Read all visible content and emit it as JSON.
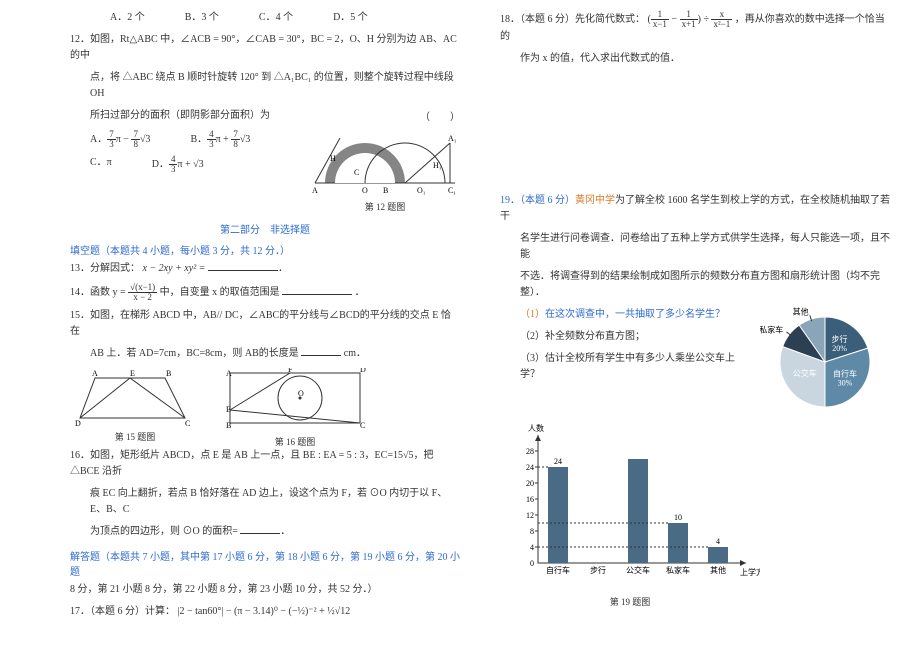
{
  "q11_choices": {
    "a": "A．2 个",
    "b": "B．3 个",
    "c": "C．4 个",
    "d": "D．5 个"
  },
  "q12": {
    "intro": "12．如图，Rt△ABC 中，∠ACB = 90°，∠CAB = 30°，BC = 2，O、H 分别为边 AB、AC 的中",
    "intro2": "点，将 △ABC 绕点 B 顺时针旋转 120° 到 △A₁BC₁ 的位置，则整个旋转过程中线段 OH",
    "intro3": "所扫过部分的面积（即阴影部分面积）为",
    "choice_a_label": "A．",
    "choice_b_label": "B．",
    "choice_c": "C．π",
    "choice_d_label": "D．",
    "figcap": "第 12 题图",
    "paren": "（　　）"
  },
  "section2_title": "第二部分　非选择题",
  "fill_heading": "填空题（本题共 4 小题，每小题 3 分，共 12 分．）",
  "q13": {
    "text": "13．分解因式：",
    "expr": "x − 2xy + xy² = "
  },
  "q14": {
    "text": "14．函数 y = ",
    "tail": " 中，自变量 x 的取值范围是",
    "period": "．"
  },
  "q15": {
    "line1": "15．如图，在梯形 ABCD 中，AB// DC，∠ABC的平分线与∠BCD的平分线的交点 E 恰在",
    "line2": "AB 上．若 AD=7cm，BC=8cm，则 AB的长度是",
    "unit": "cm．",
    "figcap": "第 15 题图",
    "figcap2": "第 16 题图"
  },
  "q16": {
    "line1": "16．如图，矩形纸片 ABCD，点 E 是 AB 上一点，且 BE : EA = 5 : 3，EC=15√5，把 △BCE 沿折",
    "line2": "痕 EC 向上翻折，若点 B 恰好落在 AD 边上，设这个点为 F，若 ⊙O 内切于以 F、E、B、C",
    "line3": "为顶点的四边形，则 ⊙O 的面积="
  },
  "solve_heading": "解答题（本题共 7 小题，其中第 17 小题 6 分，第 18 小题 6 分，第 19 小题 6 分，第 20 小题",
  "solve_heading2": "8 分，第 21 小题 8 分，第 22 小题 8 分，第 23 小题 10 分，共 52 分．）",
  "q17": {
    "label": "17．（本题 6 分）计算：",
    "expr": "|2 − tan60°| − (π − 3.14)⁰ − (−½)⁻² + ½√12"
  },
  "q18": {
    "line1": "18．（本题 6 分）先化简代数式：",
    "line2": "，再从你喜欢的数中选择一个恰当的",
    "line3": "作为 x 的值，代入求出代数式的值．"
  },
  "q19": {
    "line1": "19．（本题 6 分）",
    "school": "黄冈中学",
    "line1b": "为了解全校 1600 名学生到校上学的方式，在全校随机抽取了若干",
    "line2": "名学生进行问卷调查．问卷给出了五种上学方式供学生选择，每人只能选一项，且不能",
    "line3": "不选．将调查得到的结果绘制成如图所示的频数分布直方图和扇形统计图（均不完整）．",
    "sub1_label": "（1）",
    "sub1": "在这次调查中，一共抽取了多少名学生？",
    "sub2": "（2）补全频数分布直方图；",
    "sub3": "（3）估计全校所有学生中有多少人乘坐公交车上学？",
    "figcap": "第 19 题图"
  },
  "pie": {
    "labels": {
      "walk": "步行\n20%",
      "bike": "自行车\n30%",
      "bus": "公交车",
      "private": "私家车",
      "other": "其他"
    },
    "colors": {
      "walk": "#3b5e7a",
      "bike": "#5e8aa8",
      "bus": "#c9d6e0",
      "private": "#2d3f52",
      "other": "#8aa5b8"
    },
    "angles": {
      "walk_start": -90,
      "walk_end": -18,
      "bike_start": -18,
      "bike_end": 90,
      "bus_start": 90,
      "bus_end": 200,
      "private_start": 200,
      "private_end": 235,
      "other_start": 235,
      "other_end": 270
    }
  },
  "bar": {
    "ylabel": "人数",
    "xlabel": "上学方式",
    "ymax": 30,
    "ystep": 4,
    "yticks": [
      4,
      8,
      12,
      16,
      20,
      24,
      28
    ],
    "categories": [
      "自行车",
      "步行",
      "公交车",
      "私家车",
      "其他"
    ],
    "values": [
      24,
      null,
      null,
      10,
      4
    ],
    "value_labels": {
      "0": "24",
      "3": "10",
      "4": "4"
    },
    "bar_color": "#4a6b85",
    "visible_heights": [
      24,
      0,
      26,
      10,
      4
    ]
  }
}
